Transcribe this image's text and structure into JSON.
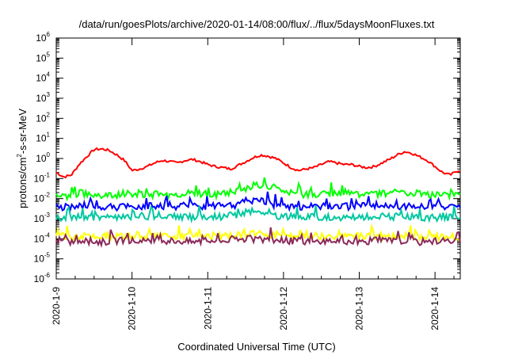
{
  "chart_data": {
    "type": "line",
    "title": "/data/run/goesPlots/archive/2020-01-14/08:00/flux/../flux/5daysMoonFluxes.txt",
    "xlabel": "Coordinated Universal Time (UTC)",
    "ylabel_parts": [
      "protons/cm",
      "2",
      "-s-sr-MeV"
    ],
    "yscale": "log",
    "ylim_exp": [
      -6,
      6
    ],
    "ytick_exps": [
      -6,
      -5,
      -4,
      -3,
      -2,
      -1,
      0,
      1,
      2,
      3,
      4,
      5,
      6
    ],
    "ytick_base": "10",
    "xlim_days": [
      "2020-01-09",
      "2020-01-14 08:00"
    ],
    "xtick_labels": [
      "2020-1-9",
      "2020-1-10",
      "2020-1-11",
      "2020-1-12",
      "2020-1-13",
      "2020-1-14"
    ],
    "grid": false,
    "legend": "none",
    "series": [
      {
        "color": "#ff0000",
        "points": [
          [
            0.0,
            0.2
          ],
          [
            0.1,
            0.12
          ],
          [
            0.2,
            0.15
          ],
          [
            0.3,
            0.5
          ],
          [
            0.4,
            1.2
          ],
          [
            0.5,
            2.8
          ],
          [
            0.6,
            3.0
          ],
          [
            0.7,
            2.5
          ],
          [
            0.8,
            1.5
          ],
          [
            0.9,
            0.8
          ],
          [
            1.0,
            0.25
          ],
          [
            1.1,
            0.3
          ],
          [
            1.2,
            0.4
          ],
          [
            1.3,
            0.6
          ],
          [
            1.4,
            0.8
          ],
          [
            1.5,
            0.7
          ],
          [
            1.6,
            0.6
          ],
          [
            1.7,
            0.8
          ],
          [
            1.8,
            0.9
          ],
          [
            1.9,
            0.7
          ],
          [
            2.0,
            0.5
          ],
          [
            2.1,
            0.4
          ],
          [
            2.2,
            0.35
          ],
          [
            2.3,
            0.3
          ],
          [
            2.4,
            0.45
          ],
          [
            2.5,
            0.7
          ],
          [
            2.6,
            1.1
          ],
          [
            2.7,
            1.5
          ],
          [
            2.8,
            1.3
          ],
          [
            2.9,
            1.0
          ],
          [
            3.0,
            0.6
          ],
          [
            3.1,
            0.35
          ],
          [
            3.2,
            0.25
          ],
          [
            3.3,
            0.3
          ],
          [
            3.4,
            0.35
          ],
          [
            3.5,
            0.5
          ],
          [
            3.6,
            0.7
          ],
          [
            3.7,
            0.6
          ],
          [
            3.8,
            0.5
          ],
          [
            3.9,
            0.5
          ],
          [
            4.0,
            0.4
          ],
          [
            4.1,
            0.35
          ],
          [
            4.2,
            0.4
          ],
          [
            4.3,
            0.6
          ],
          [
            4.4,
            0.9
          ],
          [
            4.5,
            1.5
          ],
          [
            4.6,
            2.2
          ],
          [
            4.7,
            1.8
          ],
          [
            4.8,
            1.2
          ],
          [
            4.9,
            0.8
          ],
          [
            5.0,
            0.4
          ],
          [
            5.1,
            0.2
          ],
          [
            5.2,
            0.15
          ],
          [
            5.3,
            0.25
          ]
        ]
      },
      {
        "color": "#00ff00",
        "points": [
          [
            0.0,
            0.015
          ],
          [
            0.15,
            0.012
          ],
          [
            0.3,
            0.02
          ],
          [
            0.5,
            0.013
          ],
          [
            0.7,
            0.014
          ],
          [
            0.9,
            0.018
          ],
          [
            1.1,
            0.015
          ],
          [
            1.3,
            0.016
          ],
          [
            1.5,
            0.015
          ],
          [
            1.7,
            0.018
          ],
          [
            1.9,
            0.017
          ],
          [
            2.1,
            0.015
          ],
          [
            2.3,
            0.02
          ],
          [
            2.5,
            0.03
          ],
          [
            2.6,
            0.045
          ],
          [
            2.8,
            0.04
          ],
          [
            2.95,
            0.025
          ],
          [
            3.1,
            0.018
          ],
          [
            3.3,
            0.015
          ],
          [
            3.5,
            0.017
          ],
          [
            3.7,
            0.02
          ],
          [
            3.9,
            0.018
          ],
          [
            4.1,
            0.016
          ],
          [
            4.3,
            0.018
          ],
          [
            4.5,
            0.02
          ],
          [
            4.7,
            0.018
          ],
          [
            4.9,
            0.016
          ],
          [
            5.1,
            0.014
          ],
          [
            5.3,
            0.015
          ]
        ]
      },
      {
        "color": "#0000ff",
        "points": [
          [
            0.0,
            0.004
          ],
          [
            0.2,
            0.0035
          ],
          [
            0.4,
            0.005
          ],
          [
            0.6,
            0.004
          ],
          [
            0.8,
            0.0038
          ],
          [
            1.0,
            0.004
          ],
          [
            1.2,
            0.0045
          ],
          [
            1.4,
            0.004
          ],
          [
            1.6,
            0.0042
          ],
          [
            1.8,
            0.0045
          ],
          [
            2.0,
            0.004
          ],
          [
            2.2,
            0.0045
          ],
          [
            2.4,
            0.005
          ],
          [
            2.5,
            0.008
          ],
          [
            2.7,
            0.009
          ],
          [
            2.85,
            0.005
          ],
          [
            3.0,
            0.0045
          ],
          [
            3.2,
            0.004
          ],
          [
            3.4,
            0.0043
          ],
          [
            3.6,
            0.0045
          ],
          [
            3.8,
            0.004
          ],
          [
            4.0,
            0.0042
          ],
          [
            4.2,
            0.0045
          ],
          [
            4.4,
            0.004
          ],
          [
            4.6,
            0.0042
          ],
          [
            4.8,
            0.004
          ],
          [
            5.0,
            0.0038
          ],
          [
            5.3,
            0.004
          ]
        ]
      },
      {
        "color": "#00c8a0",
        "points": [
          [
            0.0,
            0.0012
          ],
          [
            0.2,
            0.0011
          ],
          [
            0.4,
            0.0013
          ],
          [
            0.6,
            0.0011
          ],
          [
            0.8,
            0.0012
          ],
          [
            1.0,
            0.0012
          ],
          [
            1.2,
            0.0013
          ],
          [
            1.4,
            0.0012
          ],
          [
            1.6,
            0.0013
          ],
          [
            1.8,
            0.0012
          ],
          [
            2.0,
            0.0012
          ],
          [
            2.2,
            0.0013
          ],
          [
            2.4,
            0.0016
          ],
          [
            2.5,
            0.0022
          ],
          [
            2.7,
            0.0025
          ],
          [
            2.85,
            0.0015
          ],
          [
            3.0,
            0.0013
          ],
          [
            3.2,
            0.0012
          ],
          [
            3.4,
            0.0013
          ],
          [
            3.6,
            0.0012
          ],
          [
            3.8,
            0.0012
          ],
          [
            4.0,
            0.0013
          ],
          [
            4.2,
            0.0012
          ],
          [
            4.4,
            0.0013
          ],
          [
            4.6,
            0.0012
          ],
          [
            4.8,
            0.0012
          ],
          [
            5.0,
            0.0011
          ],
          [
            5.3,
            0.0012
          ]
        ]
      },
      {
        "color": "#ffff00",
        "points": [
          [
            0.0,
            0.00015
          ],
          [
            0.2,
            0.00012
          ],
          [
            0.4,
            0.00014
          ],
          [
            0.6,
            0.00013
          ],
          [
            0.8,
            0.00012
          ],
          [
            1.0,
            0.00014
          ],
          [
            1.2,
            0.00013
          ],
          [
            1.4,
            0.00014
          ],
          [
            1.6,
            0.00013
          ],
          [
            1.8,
            0.00014
          ],
          [
            2.0,
            0.00013
          ],
          [
            2.2,
            0.00014
          ],
          [
            2.4,
            0.00015
          ],
          [
            2.6,
            0.00018
          ],
          [
            2.8,
            0.00016
          ],
          [
            3.0,
            0.00014
          ],
          [
            3.2,
            0.00013
          ],
          [
            3.4,
            0.00014
          ],
          [
            3.6,
            0.00013
          ],
          [
            3.8,
            0.00014
          ],
          [
            4.0,
            0.00013
          ],
          [
            4.2,
            0.00014
          ],
          [
            4.4,
            0.00013
          ],
          [
            4.6,
            0.00014
          ],
          [
            4.8,
            0.00013
          ],
          [
            5.0,
            0.00012
          ],
          [
            5.3,
            0.00013
          ]
        ]
      },
      {
        "color": "#8b2a5a",
        "points": [
          [
            0.0,
            8e-05
          ],
          [
            0.2,
            7e-05
          ],
          [
            0.4,
            8e-05
          ],
          [
            0.6,
            7e-05
          ],
          [
            0.8,
            8e-05
          ],
          [
            1.0,
            8e-05
          ],
          [
            1.2,
            7e-05
          ],
          [
            1.4,
            8e-05
          ],
          [
            1.6,
            8e-05
          ],
          [
            1.8,
            7e-05
          ],
          [
            2.0,
            8e-05
          ],
          [
            2.2,
            8e-05
          ],
          [
            2.4,
            9e-05
          ],
          [
            2.6,
            0.0001
          ],
          [
            2.8,
            9e-05
          ],
          [
            3.0,
            8e-05
          ],
          [
            3.2,
            8e-05
          ],
          [
            3.4,
            7e-05
          ],
          [
            3.6,
            8e-05
          ],
          [
            3.8,
            8e-05
          ],
          [
            4.0,
            7e-05
          ],
          [
            4.2,
            8e-05
          ],
          [
            4.4,
            8e-05
          ],
          [
            4.6,
            8e-05
          ],
          [
            4.8,
            7e-05
          ],
          [
            5.0,
            8e-05
          ],
          [
            5.3,
            8e-05
          ]
        ]
      }
    ]
  }
}
